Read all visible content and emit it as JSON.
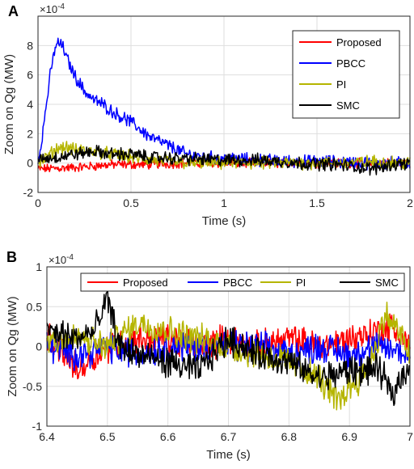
{
  "chart_data": [
    {
      "panel_label": "A",
      "type": "line",
      "title": "",
      "xlabel": "Time (s)",
      "ylabel": "Zoom on Qg (MW)",
      "xlim": [
        0,
        2
      ],
      "ylim": [
        -2,
        10
      ],
      "y_multiplier": "×10",
      "y_multiplier_exp": "-4",
      "x_ticks": [
        "0",
        "0.5",
        "1",
        "1.5",
        "2"
      ],
      "y_ticks": [
        "-2",
        "0",
        "2",
        "4",
        "6",
        "8"
      ],
      "grid": true,
      "legend_position": "top-right",
      "series": [
        {
          "name": "Proposed",
          "color": "#ff0000",
          "x": [
            0,
            0.2,
            0.4,
            0.6,
            0.8,
            1.0,
            1.2,
            1.4,
            1.6,
            1.8,
            2.0
          ],
          "y": [
            -0.4,
            -0.3,
            -0.1,
            -0.1,
            0.0,
            0.0,
            0.0,
            0.0,
            0.0,
            0.0,
            0.0
          ],
          "noise": 0.25
        },
        {
          "name": "PBCC",
          "color": "#0000ff",
          "x": [
            0,
            0.03,
            0.06,
            0.09,
            0.11,
            0.13,
            0.16,
            0.2,
            0.25,
            0.3,
            0.35,
            0.4,
            0.5,
            0.6,
            0.7,
            0.8,
            0.9,
            1.0,
            1.2,
            1.4,
            1.6,
            1.8,
            2.0
          ],
          "y": [
            0,
            2.5,
            5.5,
            7.8,
            8.2,
            8.0,
            7.0,
            5.9,
            4.9,
            4.3,
            4.0,
            3.5,
            2.8,
            1.8,
            1.2,
            0.6,
            0.4,
            0.3,
            0.2,
            0.1,
            0.1,
            0.0,
            0.0
          ],
          "noise": 0.35
        },
        {
          "name": "PI",
          "color": "#b5b500",
          "x": [
            0,
            0.05,
            0.1,
            0.15,
            0.2,
            0.3,
            0.4,
            0.5,
            0.6,
            0.8,
            1.0,
            1.2,
            1.4,
            1.6,
            1.8,
            2.0
          ],
          "y": [
            0.0,
            0.4,
            1.0,
            1.1,
            0.9,
            0.8,
            0.6,
            0.4,
            0.2,
            0.0,
            0.0,
            0.0,
            0.0,
            0.0,
            0.1,
            0.0
          ],
          "noise": 0.35
        },
        {
          "name": "SMC",
          "color": "#000000",
          "x": [
            0,
            0.1,
            0.2,
            0.3,
            0.4,
            0.5,
            0.6,
            0.8,
            1.0,
            1.2,
            1.4,
            1.6,
            1.8,
            1.9,
            2.0
          ],
          "y": [
            0.3,
            0.4,
            0.6,
            0.8,
            0.6,
            0.6,
            0.4,
            0.3,
            0.2,
            0.2,
            0.0,
            -0.1,
            -0.4,
            -0.1,
            0.0
          ],
          "noise": 0.35
        }
      ]
    },
    {
      "panel_label": "B",
      "type": "line",
      "title": "",
      "xlabel": "Time (s)",
      "ylabel": "Zoom on Qg (MW)",
      "xlim": [
        6.4,
        7
      ],
      "ylim": [
        -1,
        1
      ],
      "y_multiplier": "×10",
      "y_multiplier_exp": "-4",
      "x_ticks": [
        "6.4",
        "6.5",
        "6.6",
        "6.7",
        "6.8",
        "6.9",
        "7"
      ],
      "y_ticks": [
        "-1",
        "-0.5",
        "0",
        "0.5",
        "1"
      ],
      "grid": true,
      "legend_position": "top",
      "series": [
        {
          "name": "Proposed",
          "color": "#ff0000",
          "x": [
            6.4,
            6.43,
            6.45,
            6.5,
            6.55,
            6.6,
            6.65,
            6.7,
            6.75,
            6.8,
            6.85,
            6.9,
            6.95,
            6.97,
            7.0
          ],
          "y": [
            0.1,
            -0.1,
            -0.3,
            0.0,
            0.1,
            0.1,
            0.0,
            0.1,
            0.0,
            0.1,
            0.0,
            0.1,
            0.2,
            0.25,
            0.0
          ],
          "noise": 0.15
        },
        {
          "name": "PBCC",
          "color": "#0000ff",
          "x": [
            6.4,
            6.45,
            6.5,
            6.55,
            6.6,
            6.65,
            6.7,
            6.75,
            6.8,
            6.85,
            6.9,
            6.95,
            7.0
          ],
          "y": [
            0.0,
            -0.1,
            0.0,
            -0.1,
            0.0,
            0.0,
            0.0,
            0.0,
            -0.1,
            0.0,
            -0.1,
            0.0,
            -0.1
          ],
          "noise": 0.15
        },
        {
          "name": "PI",
          "color": "#b5b500",
          "x": [
            6.4,
            6.45,
            6.5,
            6.55,
            6.6,
            6.65,
            6.7,
            6.75,
            6.8,
            6.85,
            6.88,
            6.9,
            6.93,
            6.96,
            6.98,
            7.0
          ],
          "y": [
            0.1,
            0.1,
            0.0,
            0.3,
            0.2,
            0.1,
            0.0,
            -0.1,
            -0.2,
            -0.4,
            -0.7,
            -0.5,
            -0.3,
            0.4,
            0.2,
            -0.1
          ],
          "noise": 0.15
        },
        {
          "name": "SMC",
          "color": "#000000",
          "x": [
            6.4,
            6.45,
            6.48,
            6.5,
            6.52,
            6.55,
            6.6,
            6.65,
            6.7,
            6.75,
            6.8,
            6.85,
            6.9,
            6.95,
            6.97,
            7.0
          ],
          "y": [
            0.2,
            0.1,
            0.2,
            0.6,
            0.0,
            -0.1,
            -0.2,
            -0.3,
            0.1,
            -0.1,
            -0.2,
            -0.4,
            -0.3,
            -0.3,
            -0.6,
            -0.2
          ],
          "noise": 0.15
        }
      ]
    }
  ]
}
